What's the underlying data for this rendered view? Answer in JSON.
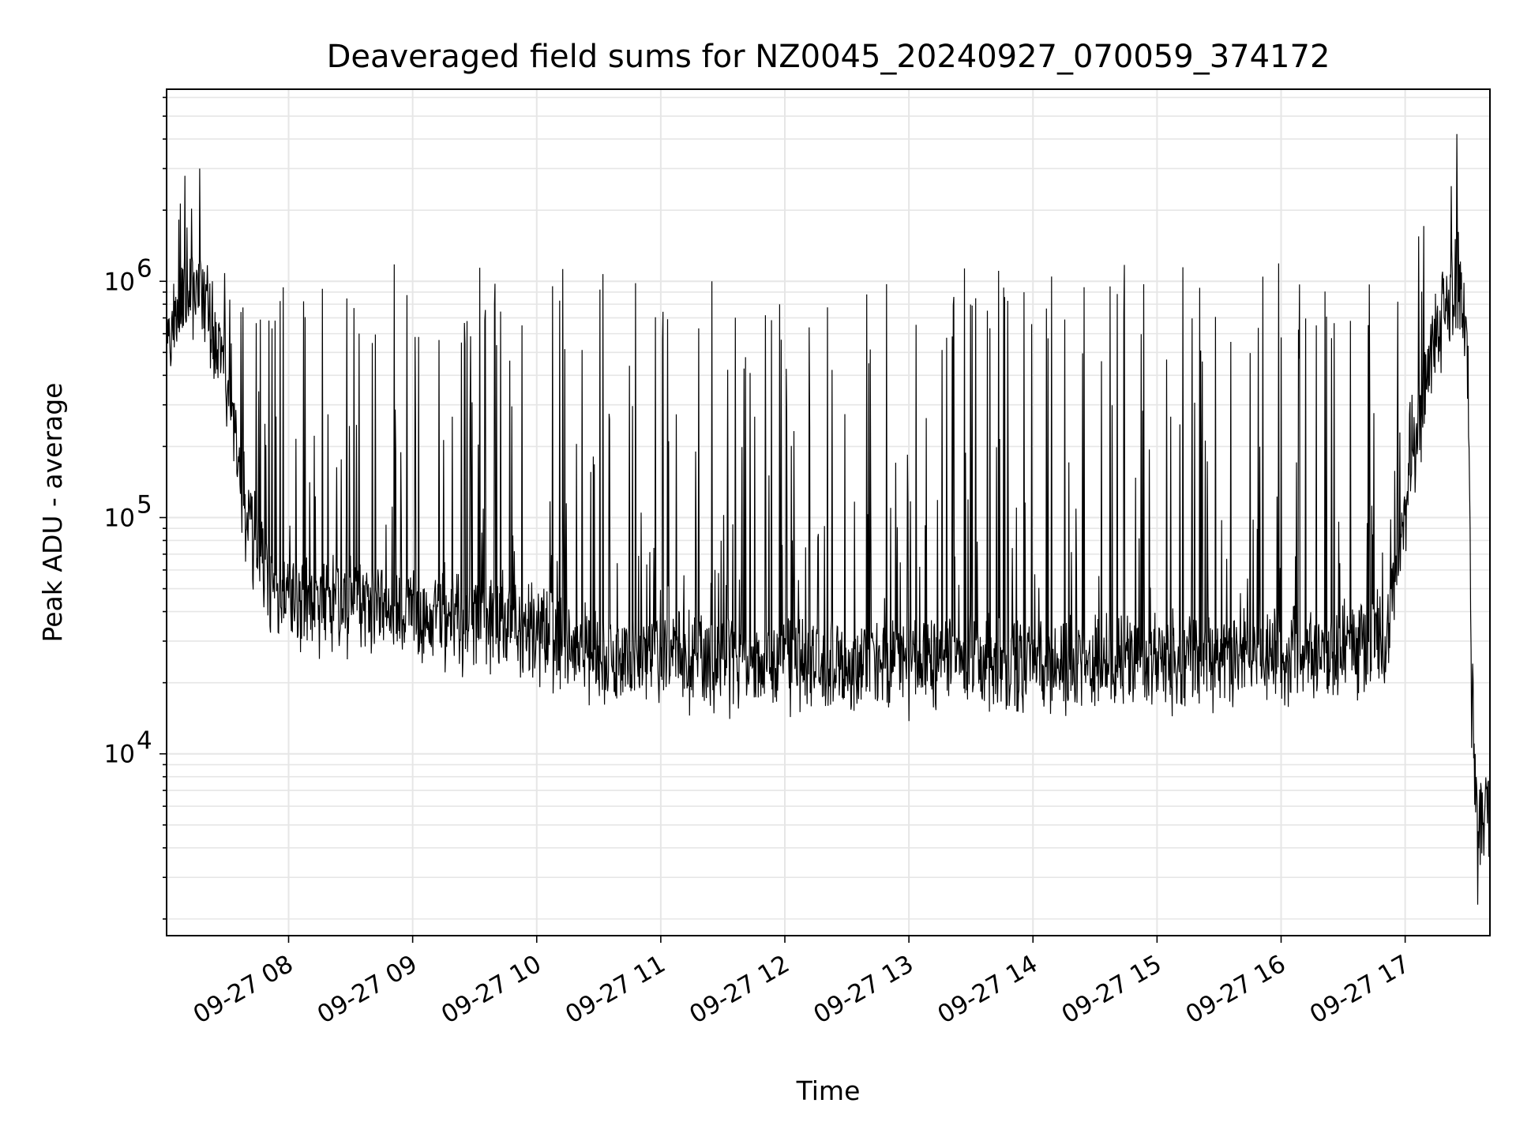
{
  "chart_data": {
    "type": "line",
    "title": "Deaveraged field sums for NZ0045_20240927_070059_374172",
    "xlabel": "Time",
    "ylabel": "Peak ADU - average",
    "yscale": "log",
    "ylim": [
      1700,
      6500000
    ],
    "xlim": [
      "2024-09-27 07:01",
      "2024-09-27 17:41"
    ],
    "grid": true,
    "line_color": "#000000",
    "grid_color": "#e6e6e6",
    "x_ticks": [
      {
        "x": "2024-09-27 08:00",
        "label": "09-27 08"
      },
      {
        "x": "2024-09-27 09:00",
        "label": "09-27 09"
      },
      {
        "x": "2024-09-27 10:00",
        "label": "09-27 10"
      },
      {
        "x": "2024-09-27 11:00",
        "label": "09-27 11"
      },
      {
        "x": "2024-09-27 12:00",
        "label": "09-27 12"
      },
      {
        "x": "2024-09-27 13:00",
        "label": "09-27 13"
      },
      {
        "x": "2024-09-27 14:00",
        "label": "09-27 14"
      },
      {
        "x": "2024-09-27 15:00",
        "label": "09-27 15"
      },
      {
        "x": "2024-09-27 16:00",
        "label": "09-27 16"
      },
      {
        "x": "2024-09-27 17:00",
        "label": "09-27 17"
      }
    ],
    "y_ticks": [
      {
        "value": 10000,
        "base": "10",
        "exp": "4"
      },
      {
        "value": 100000,
        "base": "10",
        "exp": "5"
      },
      {
        "value": 1000000,
        "base": "10",
        "exp": "6"
      }
    ],
    "series": [
      {
        "x": [
          "2024-09-27 07:01",
          "2024-09-27 07:10",
          "2024-09-27 07:17",
          "2024-09-27 07:20",
          "2024-09-27 07:25",
          "2024-09-27 07:30",
          "2024-09-27 07:35",
          "2024-09-27 07:40",
          "2024-09-27 07:45",
          "2024-09-27 07:50",
          "2024-09-27 07:55",
          "2024-09-27 08:00",
          "2024-09-27 08:10",
          "2024-09-27 08:20",
          "2024-09-27 08:30",
          "2024-09-27 08:45",
          "2024-09-27 09:00",
          "2024-09-27 09:15",
          "2024-09-27 09:30",
          "2024-09-27 09:45",
          "2024-09-27 10:00",
          "2024-09-27 10:10",
          "2024-09-27 10:20",
          "2024-09-27 10:30",
          "2024-09-27 10:45",
          "2024-09-27 11:00",
          "2024-09-27 11:30",
          "2024-09-27 12:00",
          "2024-09-27 12:30",
          "2024-09-27 13:00",
          "2024-09-27 13:30",
          "2024-09-27 14:00",
          "2024-09-27 14:30",
          "2024-09-27 15:00",
          "2024-09-27 15:30",
          "2024-09-27 15:45",
          "2024-09-27 16:00",
          "2024-09-27 16:15",
          "2024-09-27 16:30",
          "2024-09-27 16:40",
          "2024-09-27 16:45",
          "2024-09-27 16:50",
          "2024-09-27 16:55",
          "2024-09-27 17:00",
          "2024-09-27 17:05",
          "2024-09-27 17:10",
          "2024-09-27 17:15",
          "2024-09-27 17:20",
          "2024-09-27 17:25",
          "2024-09-27 17:28",
          "2024-09-27 17:30",
          "2024-09-27 17:31",
          "2024-09-27 17:32",
          "2024-09-27 17:34",
          "2024-09-27 17:36",
          "2024-09-27 17:38",
          "2024-09-27 17:40",
          "2024-09-27 17:41"
        ],
        "baseline": [
          650000,
          800000,
          1000000,
          800000,
          600000,
          400000,
          200000,
          100000,
          70000,
          55000,
          48000,
          45000,
          45000,
          44000,
          43000,
          41000,
          40000,
          38000,
          37000,
          36000,
          34000,
          31000,
          29000,
          28000,
          27000,
          26000,
          25000,
          24000,
          24000,
          24000,
          24000,
          24500,
          25000,
          25500,
          26000,
          26500,
          27000,
          27500,
          28500,
          29000,
          30000,
          31000,
          50000,
          100000,
          200000,
          350000,
          600000,
          800000,
          900000,
          800000,
          500000,
          200000,
          30000,
          6000,
          5000,
          6000,
          5500,
          5000
        ],
        "peaks_estimated_max": [
          1400000,
          3000000,
          1300000,
          1600000,
          1500000,
          1100000,
          1000000,
          950000,
          1400000,
          1400000,
          1250000,
          1300000,
          1300000,
          1100000,
          1300000,
          1250000,
          1250000,
          1100000,
          1250000,
          1050000,
          1200000,
          1150000,
          1150000,
          1100000,
          1100000,
          1100000,
          1050000,
          1000000,
          1100000,
          1100000,
          1150000,
          1200000,
          1200000,
          1200000,
          1150000,
          1100000,
          1200000,
          1200000,
          1200000,
          1300000,
          1300000,
          1400000,
          1500000,
          1500000,
          1700000,
          2500000,
          3000000,
          4200000,
          2000000,
          900000,
          300000,
          50000,
          10000,
          8000,
          8000,
          7000,
          8000,
          7000
        ],
        "extremes": {
          "max": 4200000,
          "min": 2300
        }
      }
    ]
  }
}
